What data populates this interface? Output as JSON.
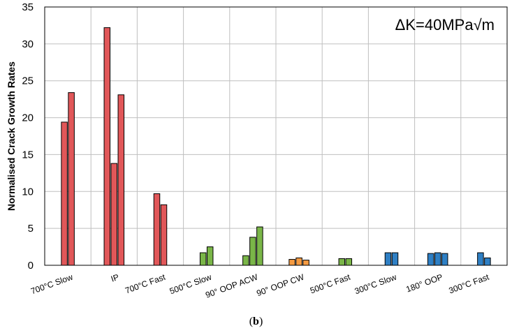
{
  "chart_data": {
    "type": "bar",
    "title": "",
    "annotation": "ΔK=40MPa√m",
    "xlabel": "",
    "ylabel": "Normalised Crack Growth Rates",
    "ylim": [
      0,
      35
    ],
    "yticks": [
      0,
      5,
      10,
      15,
      20,
      25,
      30,
      35
    ],
    "grid": true,
    "legend": "none",
    "categories": [
      {
        "label": "700°C Slow",
        "color": "#e15759",
        "values": [
          19.4,
          23.4
        ]
      },
      {
        "label": "IP",
        "color": "#e15759",
        "values": [
          32.2,
          13.8,
          23.1
        ]
      },
      {
        "label": "700°C Fast",
        "color": "#e15759",
        "values": [
          9.7,
          8.2
        ]
      },
      {
        "label": "500°C Slow",
        "color": "#7ab648",
        "values": [
          1.7,
          2.5
        ]
      },
      {
        "label": "90° OOP ACW",
        "color": "#7ab648",
        "values": [
          1.3,
          3.8,
          5.2
        ]
      },
      {
        "label": "90° OOP CW",
        "color": "#f59b42",
        "values": [
          0.8,
          1.0,
          0.7
        ]
      },
      {
        "label": "500°C Fast",
        "color": "#7ab648",
        "values": [
          0.9,
          0.9
        ]
      },
      {
        "label": "300°C Slow",
        "color": "#2e7fc4",
        "values": [
          1.7,
          1.7
        ]
      },
      {
        "label": "180° OOP",
        "color": "#2e7fc4",
        "values": [
          1.6,
          1.7,
          1.6
        ]
      },
      {
        "label": "300°C Fast",
        "color": "#2e7fc4",
        "values": [
          1.7,
          1.0
        ]
      }
    ]
  },
  "caption": "(b)"
}
